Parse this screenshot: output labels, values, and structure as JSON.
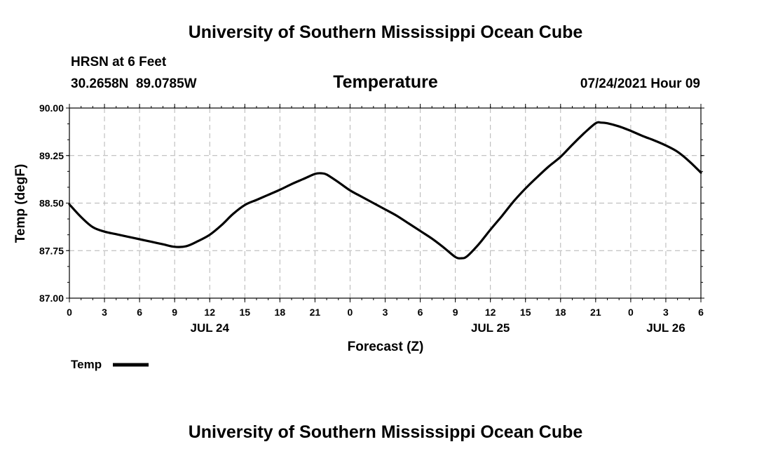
{
  "header": {
    "title_top": "University of Southern Mississippi Ocean Cube",
    "station": "HRSN at 6 Feet",
    "coords": "30.2658N  89.0785W",
    "variable": "Temperature",
    "date": "07/24/2021 Hour 09",
    "title_bottom": "University of Southern Mississippi Ocean Cube"
  },
  "chart_data": {
    "type": "line",
    "title": "Temperature",
    "xlabel": "Forecast (Z)",
    "ylabel": "Temp (degF)",
    "ylim": [
      87.0,
      90.0
    ],
    "y_ticks": [
      "87.00",
      "87.75",
      "88.50",
      "89.25",
      "90.00"
    ],
    "x_range_hours": [
      0,
      54
    ],
    "x_ticks": [
      {
        "h": 0,
        "label": "0"
      },
      {
        "h": 3,
        "label": "3"
      },
      {
        "h": 6,
        "label": "6"
      },
      {
        "h": 9,
        "label": "9"
      },
      {
        "h": 12,
        "label": "12"
      },
      {
        "h": 15,
        "label": "15"
      },
      {
        "h": 18,
        "label": "18"
      },
      {
        "h": 21,
        "label": "21"
      },
      {
        "h": 24,
        "label": "0"
      },
      {
        "h": 27,
        "label": "3"
      },
      {
        "h": 30,
        "label": "6"
      },
      {
        "h": 33,
        "label": "9"
      },
      {
        "h": 36,
        "label": "12"
      },
      {
        "h": 39,
        "label": "15"
      },
      {
        "h": 42,
        "label": "18"
      },
      {
        "h": 45,
        "label": "21"
      },
      {
        "h": 48,
        "label": "0"
      },
      {
        "h": 51,
        "label": "3"
      },
      {
        "h": 54,
        "label": "6"
      }
    ],
    "day_labels": [
      {
        "h": 12,
        "label": "JUL 24"
      },
      {
        "h": 36,
        "label": "JUL 25"
      },
      {
        "h": 51,
        "label": "JUL 26"
      }
    ],
    "grid": true,
    "legend": [
      {
        "name": "Temp",
        "position": "bottom-left"
      }
    ],
    "series": [
      {
        "name": "Temp",
        "x": [
          0,
          1,
          2,
          3,
          4,
          5,
          6,
          7,
          8,
          9,
          10,
          11,
          12,
          13,
          14,
          15,
          16,
          17,
          18,
          19,
          20,
          21,
          21.5,
          22,
          23,
          24,
          25,
          26,
          27,
          28,
          29,
          30,
          31,
          32,
          33,
          33.5,
          34,
          35,
          36,
          37,
          38,
          39,
          40,
          41,
          42,
          43,
          44,
          45,
          45.5,
          46,
          47,
          48,
          49,
          50,
          51,
          52,
          53,
          54
        ],
        "y": [
          88.48,
          88.28,
          88.12,
          88.05,
          88.01,
          87.97,
          87.93,
          87.89,
          87.85,
          87.81,
          87.82,
          87.9,
          88.0,
          88.15,
          88.33,
          88.47,
          88.55,
          88.63,
          88.71,
          88.8,
          88.88,
          88.96,
          88.97,
          88.95,
          88.83,
          88.7,
          88.6,
          88.5,
          88.4,
          88.3,
          88.18,
          88.06,
          87.94,
          87.8,
          87.65,
          87.63,
          87.66,
          87.85,
          88.08,
          88.3,
          88.53,
          88.73,
          88.91,
          89.08,
          89.23,
          89.42,
          89.6,
          89.76,
          89.77,
          89.76,
          89.71,
          89.64,
          89.56,
          89.49,
          89.41,
          89.31,
          89.16,
          88.98
        ]
      }
    ],
    "colors": {
      "line": "#000000",
      "grid": "#b4b4b4",
      "axis": "#000000"
    }
  }
}
